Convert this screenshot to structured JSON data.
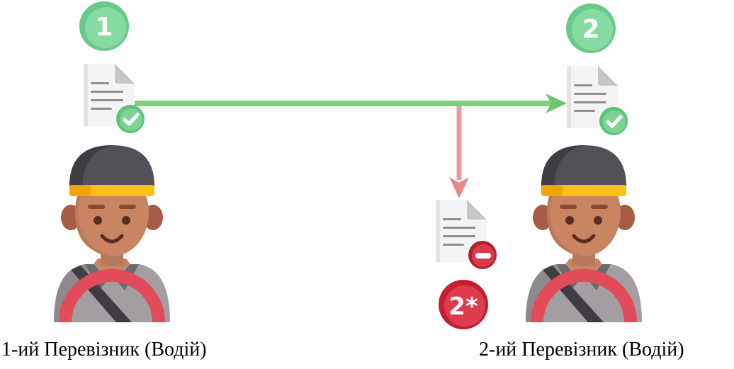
{
  "carrier_1": {
    "step_badge": "1",
    "caption": "1-ий Перевізник (Водій)"
  },
  "carrier_2": {
    "step_badge": "2",
    "caption": "2-ий Перевізник (Водій)"
  },
  "rejected_document": {
    "step_badge": "2*"
  },
  "colors": {
    "approved_green": "#7dd492",
    "rejected_red": "#d93a4c",
    "arrow_green": "#7ed07f",
    "arrow_red": "#ee9a9c"
  },
  "icons": {
    "approved_document": "document-check-icon",
    "rejected_document": "document-minus-icon",
    "driver": "driver-icon"
  }
}
